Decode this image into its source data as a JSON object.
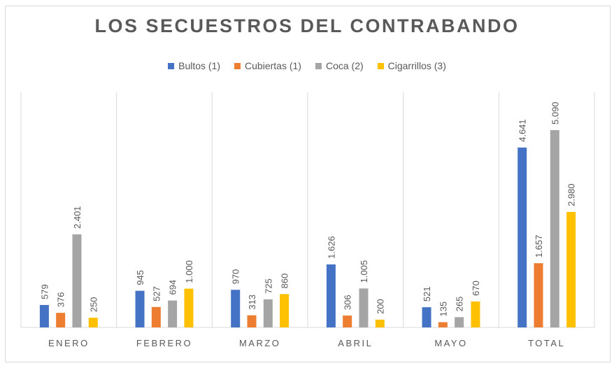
{
  "chart_data": {
    "type": "bar",
    "title": "LOS SECUESTROS DEL CONTRABANDO",
    "categories": [
      "ENERO",
      "FEBRERO",
      "MARZO",
      "ABRIL",
      "MAYO",
      "TOTAL"
    ],
    "series": [
      {
        "name": "Bultos (1)",
        "color": "#4472c4",
        "values": [
          579,
          945,
          970,
          1626,
          521,
          4641
        ],
        "labels": [
          "579",
          "945",
          "970",
          "1.626",
          "521",
          "4.641"
        ]
      },
      {
        "name": "Cubiertas (1)",
        "color": "#ed7d31",
        "values": [
          376,
          527,
          313,
          306,
          135,
          1657
        ],
        "labels": [
          "376",
          "527",
          "313",
          "306",
          "135",
          "1.657"
        ]
      },
      {
        "name": "Coca (2)",
        "color": "#a5a5a5",
        "values": [
          2401,
          694,
          725,
          1005,
          265,
          5090
        ],
        "labels": [
          "2.401",
          "694",
          "725",
          "1.005",
          "265",
          "5.090"
        ]
      },
      {
        "name": "Cigarrillos (3)",
        "color": "#ffc000",
        "values": [
          250,
          1000,
          860,
          200,
          670,
          2980
        ],
        "labels": [
          "250",
          "1.000",
          "860",
          "200",
          "670",
          "2.980"
        ]
      }
    ],
    "legend": "top",
    "grid": false,
    "ylim": [
      0,
      5090
    ]
  }
}
